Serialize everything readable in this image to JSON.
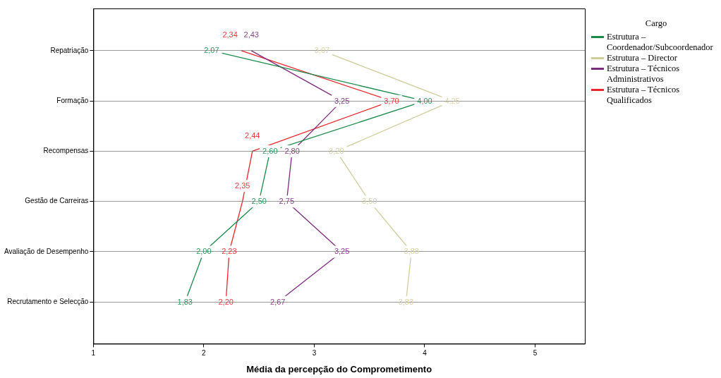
{
  "chart_data": {
    "type": "line",
    "orientation": "horizontal",
    "xlabel": "Média da percepção do Comprometimento",
    "legend_title": "Cargo",
    "legend": "right",
    "grid": "y",
    "marker": "none",
    "line_style": "solid",
    "categories": [
      "Repatriação",
      "Formação",
      "Recompensas",
      "Gestão de Carreiras",
      "Avaliação de Desempenho",
      "Recrutamento e Selecção"
    ],
    "xlim": [
      1,
      5.45
    ],
    "xticks": [
      1,
      2,
      3,
      4,
      5
    ],
    "series": [
      {
        "name": "Estrutura – Coordenador/Subcoordenador",
        "color": "#1a8a4a",
        "values": [
          2.07,
          4.0,
          2.6,
          2.5,
          2.0,
          1.83
        ],
        "value_labels": [
          "2,07",
          "4,00",
          "2,60",
          "2,50",
          "2,00",
          "1,83"
        ]
      },
      {
        "name": "Estrutura – Director",
        "color": "#d2cb9c",
        "values": [
          3.07,
          4.25,
          3.2,
          3.5,
          3.88,
          3.83
        ],
        "value_labels": [
          "3,07",
          "4,25",
          "3,20",
          "3,50",
          "3,88",
          "3,83"
        ]
      },
      {
        "name": "Estrutura – Técnicos Administrativos",
        "color": "#7b2d7b",
        "values": [
          2.43,
          3.25,
          2.8,
          2.75,
          3.25,
          2.67
        ],
        "value_labels": [
          "2,43",
          "3,25",
          "2,80",
          "2,75",
          "3,25",
          "2,67"
        ]
      },
      {
        "name": "Estrutura – Técnicos Qualificados",
        "color": "#e8242c",
        "values": [
          2.34,
          3.7,
          2.44,
          2.35,
          2.23,
          2.2
        ],
        "value_labels": [
          "2,34",
          "3,70",
          "2,44",
          "2,35",
          "2,23",
          "2,20"
        ]
      }
    ]
  }
}
